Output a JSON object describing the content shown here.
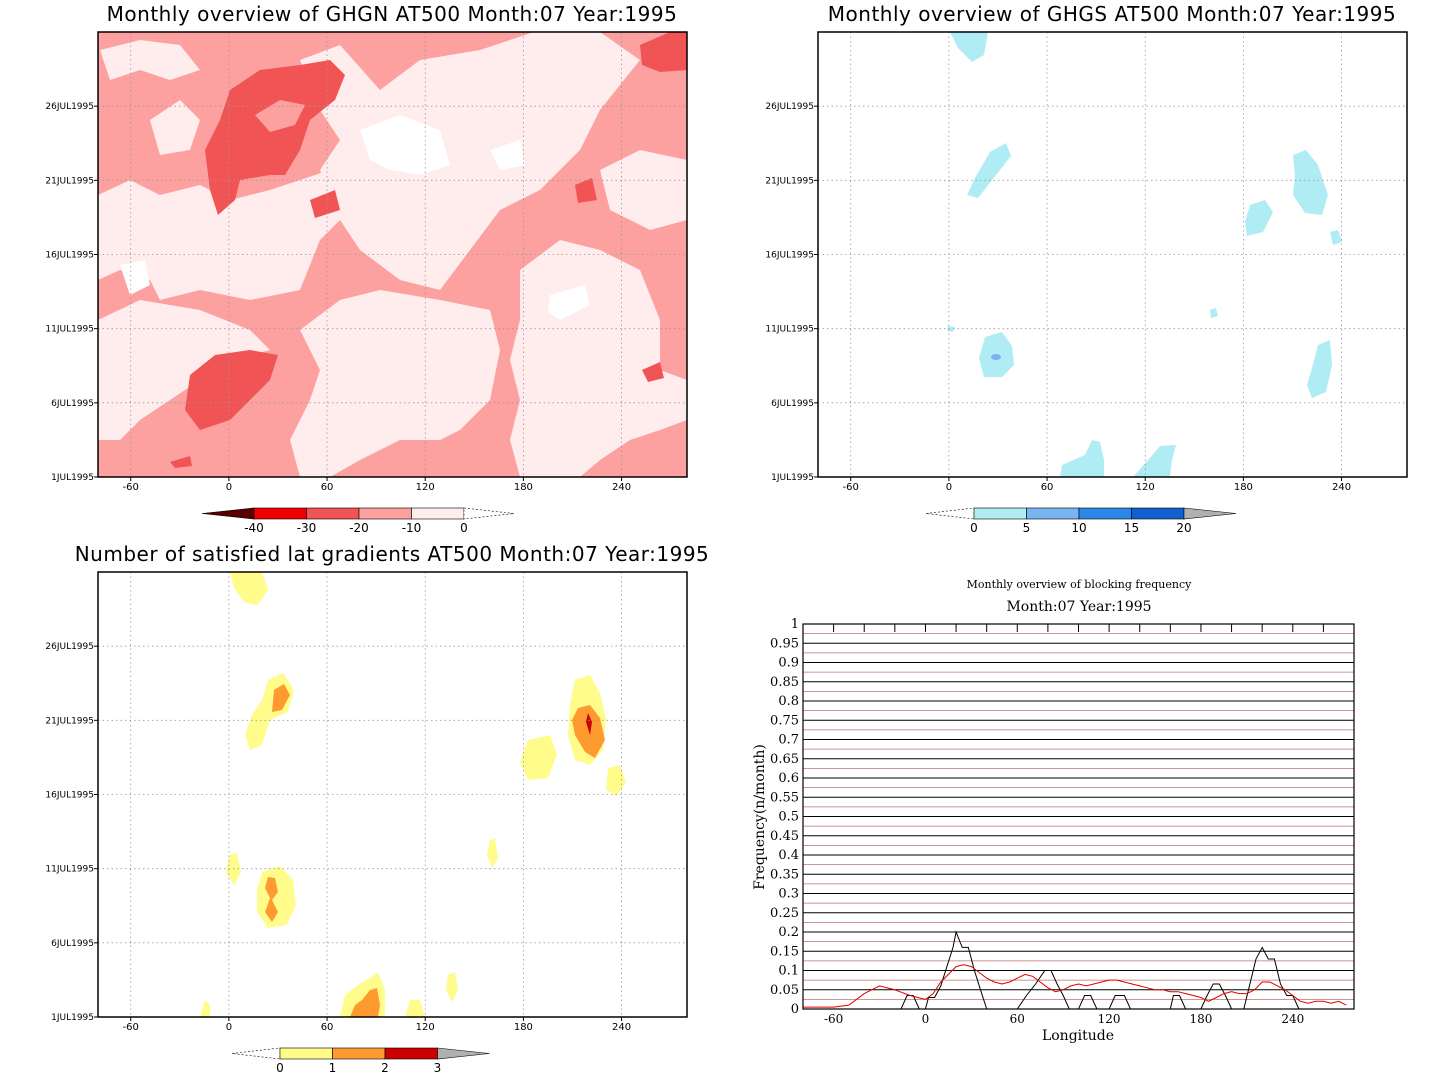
{
  "chart_data": [
    {
      "type": "heatmap",
      "title": "Monthly overview of GHGN AT500 Month:07 Year:1995",
      "x_ticks": [
        "-60",
        "0",
        "60",
        "120",
        "180",
        "240"
      ],
      "y_ticks": [
        "1JUL1995",
        "6JUL1995",
        "11JUL1995",
        "16JUL1995",
        "21JUL1995",
        "26JUL1995"
      ],
      "xlim": [
        -80,
        280
      ],
      "colorbar": {
        "labels": [
          "-40",
          "-30",
          "-20",
          "-10",
          "0"
        ],
        "colors": [
          "#5a0000",
          "#ee0000",
          "#f05454",
          "#fda0a0",
          "#ffecec"
        ]
      },
      "colors": {
        "background": "#fda0a0",
        "light": "#ffecec",
        "white": "#ffffff",
        "mid": "#f05454"
      }
    },
    {
      "type": "heatmap",
      "title": "Monthly overview of GHGS AT500 Month:07 Year:1995",
      "x_ticks": [
        "-60",
        "0",
        "60",
        "120",
        "180",
        "240"
      ],
      "y_ticks": [
        "1JUL1995",
        "6JUL1995",
        "11JUL1995",
        "16JUL1995",
        "21JUL1995",
        "26JUL1995"
      ],
      "xlim": [
        -80,
        280
      ],
      "colorbar": {
        "labels": [
          "0",
          "5",
          "10",
          "15",
          "20"
        ],
        "colors": [
          "#b0ecf4",
          "#78b4f0",
          "#2c88e8",
          "#1060d0",
          "#b0b0b0"
        ]
      }
    },
    {
      "type": "heatmap",
      "title": "Number of satisfied lat gradients AT500 Month:07 Year:1995",
      "x_ticks": [
        "-60",
        "0",
        "60",
        "120",
        "180",
        "240"
      ],
      "y_ticks": [
        "1JUL1995",
        "6JUL1995",
        "11JUL1995",
        "16JUL1995",
        "21JUL1995",
        "26JUL1995"
      ],
      "xlim": [
        -80,
        280
      ],
      "colorbar": {
        "labels": [
          "0",
          "1",
          "2",
          "3"
        ],
        "colors": [
          "#fffc8c",
          "#ff9a30",
          "#cc0000",
          "#b0b0b0"
        ]
      }
    },
    {
      "type": "line",
      "title": "Monthly overview of blocking frequency",
      "subtitle": "Month:07 Year:1995",
      "xlabel": "Longitude",
      "ylabel": "Frequency(n/month)",
      "xlim": [
        -80,
        280
      ],
      "ylim": [
        0,
        1
      ],
      "x_ticks": [
        "-60",
        "0",
        "60",
        "120",
        "180",
        "240"
      ],
      "y_ticks": [
        "0",
        "0.05",
        "0.1",
        "0.15",
        "0.2",
        "0.25",
        "0.3",
        "0.35",
        "0.4",
        "0.45",
        "0.5",
        "0.55",
        "0.6",
        "0.65",
        "0.7",
        "0.75",
        "0.8",
        "0.85",
        "0.9",
        "0.95",
        "1"
      ],
      "series": [
        {
          "color": "#000000",
          "x": [
            -80,
            -20,
            -16,
            -12,
            -8,
            -4,
            0,
            2,
            6,
            10,
            14,
            18,
            20,
            24,
            28,
            32,
            36,
            40,
            44,
            48,
            60,
            66,
            72,
            78,
            82,
            86,
            90,
            94,
            100,
            104,
            108,
            112,
            116,
            120,
            124,
            130,
            134,
            138,
            142,
            160,
            162,
            166,
            170,
            174,
            180,
            184,
            188,
            192,
            196,
            200,
            204,
            208,
            212,
            216,
            220,
            224,
            228,
            232,
            236,
            240,
            244,
            248,
            280
          ],
          "y": [
            0,
            0,
            0,
            0.035,
            0.035,
            0,
            0,
            0.03,
            0.03,
            0.06,
            0.11,
            0.16,
            0.2,
            0.16,
            0.16,
            0.1,
            0.05,
            0,
            0,
            0,
            0,
            0.035,
            0.065,
            0.1,
            0.1,
            0.065,
            0.035,
            0,
            0,
            0.035,
            0.035,
            0,
            0,
            0,
            0.035,
            0.035,
            0,
            0,
            0,
            0,
            0.035,
            0.035,
            0,
            0,
            0,
            0.035,
            0.065,
            0.065,
            0.035,
            0,
            0,
            0,
            0.065,
            0.13,
            0.16,
            0.13,
            0.13,
            0.065,
            0.035,
            0.035,
            0,
            0,
            0
          ]
        },
        {
          "color": "#e00000",
          "x": [
            -80,
            -60,
            -50,
            -40,
            -30,
            -20,
            -10,
            -5,
            0,
            5,
            10,
            15,
            20,
            25,
            30,
            35,
            40,
            45,
            50,
            55,
            60,
            65,
            70,
            75,
            80,
            85,
            90,
            95,
            100,
            105,
            110,
            115,
            120,
            125,
            130,
            135,
            140,
            145,
            150,
            155,
            160,
            165,
            170,
            175,
            180,
            185,
            190,
            195,
            200,
            205,
            210,
            215,
            220,
            225,
            230,
            235,
            240,
            245,
            250,
            255,
            260,
            265,
            270,
            275
          ],
          "y": [
            0.005,
            0.005,
            0.01,
            0.04,
            0.06,
            0.05,
            0.035,
            0.03,
            0.025,
            0.04,
            0.07,
            0.09,
            0.11,
            0.115,
            0.11,
            0.095,
            0.08,
            0.07,
            0.065,
            0.07,
            0.08,
            0.09,
            0.085,
            0.07,
            0.055,
            0.045,
            0.05,
            0.06,
            0.065,
            0.06,
            0.065,
            0.07,
            0.075,
            0.075,
            0.07,
            0.065,
            0.06,
            0.055,
            0.05,
            0.05,
            0.045,
            0.045,
            0.04,
            0.035,
            0.03,
            0.02,
            0.03,
            0.04,
            0.045,
            0.04,
            0.04,
            0.05,
            0.07,
            0.07,
            0.06,
            0.05,
            0.035,
            0.02,
            0.015,
            0.02,
            0.02,
            0.015,
            0.02,
            0.01
          ]
        }
      ]
    }
  ]
}
